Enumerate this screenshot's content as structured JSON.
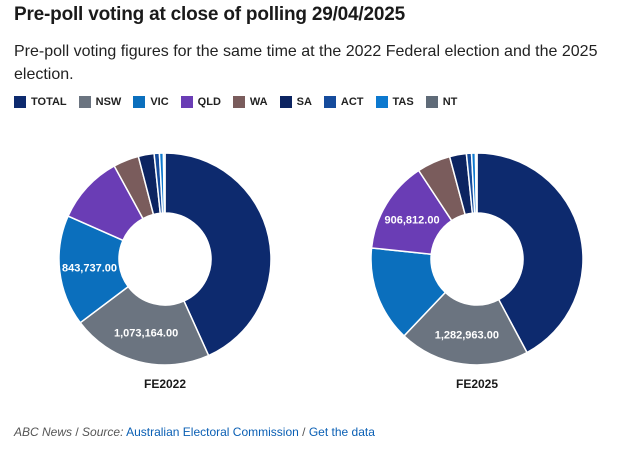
{
  "title": "Pre-poll voting at close of polling 29/04/2025",
  "subtitle": "Pre-poll voting figures for the same time at the 2022 Federal election and the 2025 election.",
  "footer": {
    "brand": "ABC News",
    "separator": "/",
    "source_label": "Source:",
    "source_link": "Australian Electoral Commission",
    "data_link": "Get the data"
  },
  "colors": {
    "TOTAL": "#0d2a6e",
    "NSW": "#6b7480",
    "VIC": "#0b6fbd",
    "QLD": "#6a3db5",
    "WA": "#7a5c5c",
    "SA": "#0c2461",
    "ACT": "#154b9c",
    "TAS": "#0d79cf",
    "NT": "#5f6b78"
  },
  "chart_data": [
    {
      "type": "pie",
      "caption": "FE2022",
      "categories": [
        "TOTAL",
        "NSW",
        "VIC",
        "QLD",
        "WA",
        "SA",
        "ACT",
        "TAS",
        "NT"
      ],
      "values": [
        2160000,
        1073164,
        843737,
        520000,
        195000,
        120000,
        40000,
        30000,
        12000
      ],
      "labels": [
        "",
        "1,073,164.00",
        "843,737.00",
        "",
        "",
        "",
        "",
        "",
        ""
      ]
    },
    {
      "type": "pie",
      "caption": "FE2025",
      "categories": [
        "TOTAL",
        "NSW",
        "VIC",
        "QLD",
        "WA",
        "SA",
        "ACT",
        "TAS",
        "NT"
      ],
      "values": [
        2720000,
        1282963,
        940000,
        906812,
        330000,
        165000,
        50000,
        38000,
        15000
      ],
      "labels": [
        "",
        "1,282,963.00",
        "",
        "906,812.00",
        "",
        "",
        "",
        "",
        ""
      ]
    }
  ]
}
